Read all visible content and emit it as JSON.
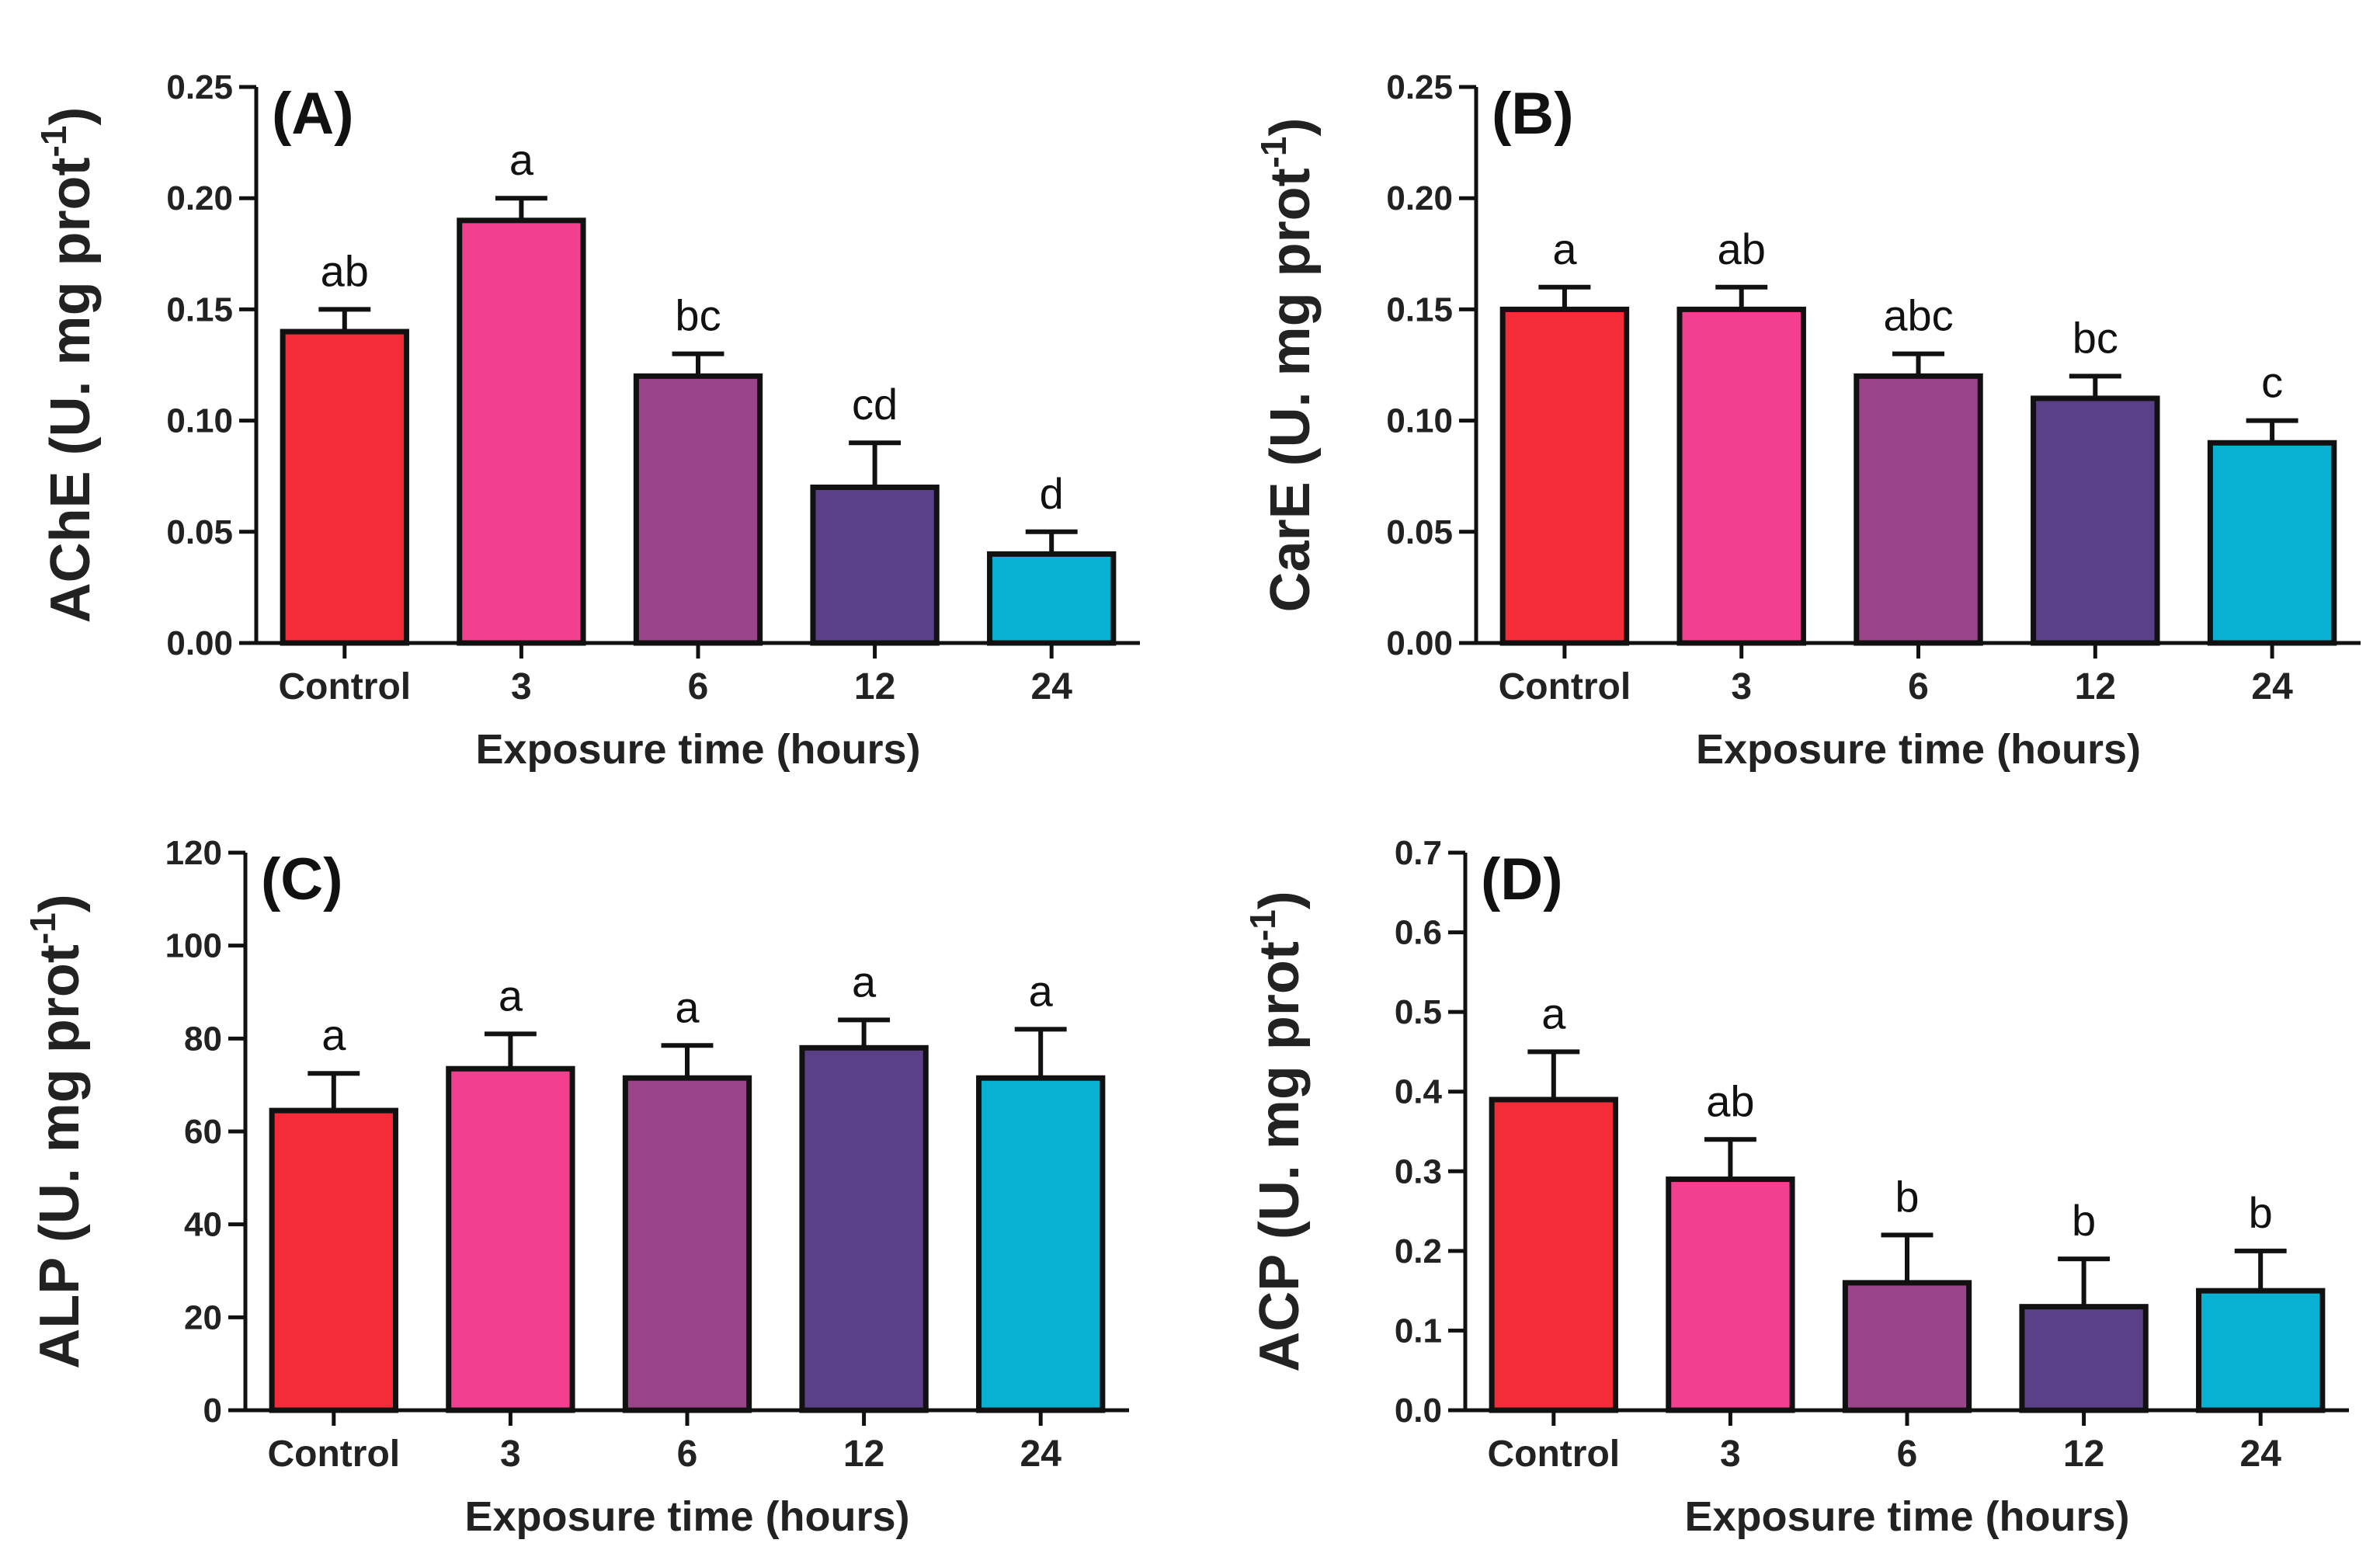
{
  "colors": [
    "#f42c38",
    "#f23f8f",
    "#9a4589",
    "#5a4187",
    "#08b1d1"
  ],
  "chart_data": [
    {
      "panel": "(A)",
      "type": "bar",
      "categories": [
        "Control",
        "3",
        "6",
        "12",
        "24"
      ],
      "values": [
        0.14,
        0.19,
        0.12,
        0.07,
        0.04
      ],
      "errors": [
        0.01,
        0.01,
        0.01,
        0.02,
        0.01
      ],
      "letters": [
        "ab",
        "a",
        "bc",
        "cd",
        "d"
      ],
      "ylim": [
        0,
        0.25
      ],
      "yticks": [
        "0.00",
        "0.05",
        "0.10",
        "0.15",
        "0.20",
        "0.25"
      ],
      "ylabel": "AChE (U. mg prot",
      "ylabel_sup": "-1",
      "ylabel_end": ")",
      "xlabel": "Exposure time (hours)"
    },
    {
      "panel": "(B)",
      "type": "bar",
      "categories": [
        "Control",
        "3",
        "6",
        "12",
        "24"
      ],
      "values": [
        0.15,
        0.15,
        0.12,
        0.11,
        0.09
      ],
      "errors": [
        0.01,
        0.01,
        0.01,
        0.01,
        0.01
      ],
      "letters": [
        "a",
        "ab",
        "abc",
        "bc",
        "c"
      ],
      "ylim": [
        0,
        0.25
      ],
      "yticks": [
        "0.00",
        "0.05",
        "0.10",
        "0.15",
        "0.20",
        "0.25"
      ],
      "ylabel": "CarE (U. mg prot",
      "ylabel_sup": "-1",
      "ylabel_end": ")",
      "xlabel": "Exposure time (hours)"
    },
    {
      "panel": "(C)",
      "type": "bar",
      "categories": [
        "Control",
        "3",
        "6",
        "12",
        "24"
      ],
      "values": [
        64.5,
        73.5,
        71.5,
        78,
        71.5
      ],
      "errors": [
        8,
        7.5,
        7,
        6,
        10.5
      ],
      "letters": [
        "a",
        "a",
        "a",
        "a",
        "a"
      ],
      "ylim": [
        0,
        120
      ],
      "yticks": [
        "0",
        "20",
        "40",
        "60",
        "80",
        "100",
        "120"
      ],
      "ylabel": "ALP (U. mg prot",
      "ylabel_sup": "-1",
      "ylabel_end": ")",
      "xlabel": "Exposure time (hours)"
    },
    {
      "panel": "(D)",
      "type": "bar",
      "categories": [
        "Control",
        "3",
        "6",
        "12",
        "24"
      ],
      "values": [
        0.39,
        0.29,
        0.16,
        0.13,
        0.15
      ],
      "errors": [
        0.06,
        0.05,
        0.06,
        0.06,
        0.05
      ],
      "letters": [
        "a",
        "ab",
        "b",
        "b",
        "b"
      ],
      "ylim": [
        0,
        0.7
      ],
      "yticks": [
        "0.0",
        "0.1",
        "0.2",
        "0.3",
        "0.4",
        "0.5",
        "0.6",
        "0.7"
      ],
      "ylabel": "ACP (U. mg prot",
      "ylabel_sup": "-1",
      "ylabel_end": ")",
      "xlabel": "Exposure time (hours)"
    }
  ]
}
